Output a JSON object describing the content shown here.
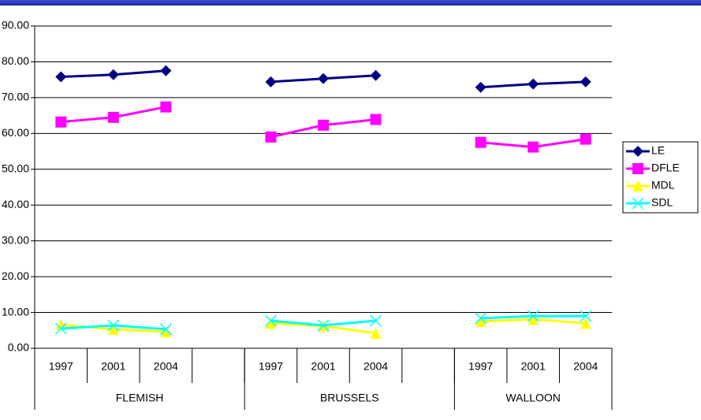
{
  "chart_data": {
    "type": "line",
    "categories": [
      "1997",
      "2001",
      "2004",
      null,
      "1997",
      "2001",
      "2004",
      null,
      "1997",
      "2001",
      "2004"
    ],
    "groups": [
      "FLEMISH",
      "BRUSSELS",
      "WALLOON"
    ],
    "series": [
      {
        "name": "LE",
        "color": "#000080",
        "marker": "diamond",
        "values": [
          75.8,
          76.4,
          77.5,
          null,
          74.4,
          75.3,
          76.2,
          null,
          72.9,
          73.8,
          74.4
        ]
      },
      {
        "name": "DFLE",
        "color": "#ff00ff",
        "marker": "square",
        "values": [
          63.2,
          64.5,
          67.4,
          null,
          59.0,
          62.3,
          63.9,
          null,
          57.5,
          56.2,
          58.4
        ]
      },
      {
        "name": "MDL",
        "color": "#ffff00",
        "marker": "triangle",
        "values": [
          6.6,
          5.3,
          4.6,
          null,
          7.0,
          6.2,
          4.2,
          null,
          7.5,
          8.1,
          7.0
        ]
      },
      {
        "name": "SDL",
        "color": "#00ffff",
        "marker": "x",
        "values": [
          5.5,
          6.4,
          5.3,
          null,
          7.7,
          6.4,
          7.7,
          null,
          8.4,
          9.0,
          9.0
        ]
      }
    ],
    "ylim": [
      0,
      90
    ],
    "yticks": [
      {
        "value": 0,
        "label": "0.00"
      },
      {
        "value": 10,
        "label": "10.00"
      },
      {
        "value": 20,
        "label": "20.00"
      },
      {
        "value": 30,
        "label": "30.00"
      },
      {
        "value": 40,
        "label": "40.00"
      },
      {
        "value": 50,
        "label": "50.00"
      },
      {
        "value": 60,
        "label": "60.00"
      },
      {
        "value": 70,
        "label": "70.00"
      },
      {
        "value": 80,
        "label": "80.00"
      },
      {
        "value": 90,
        "label": "90.00"
      }
    ],
    "grid": true,
    "legend": "right"
  }
}
